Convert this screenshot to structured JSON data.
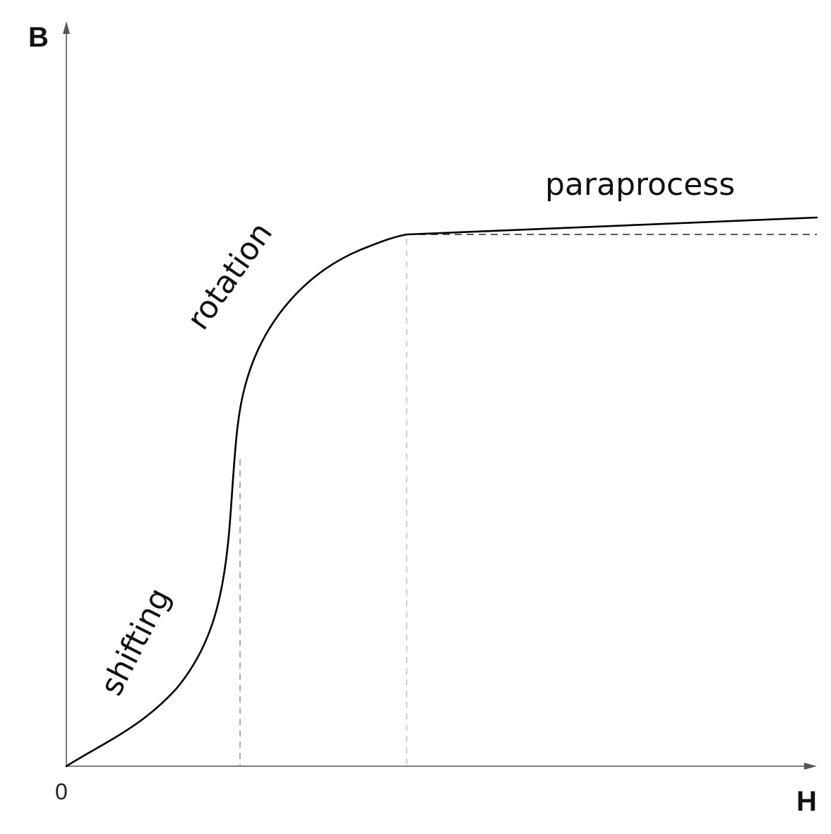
{
  "axes": {
    "y_label": "B",
    "x_label": "H",
    "origin_label": "0"
  },
  "regions": {
    "shifting": "shifting",
    "rotation": "rotation",
    "paraprocess": "paraprocess"
  },
  "colors": {
    "curve": "#000000",
    "axis": "#555555",
    "guide": "#8a8a8a"
  }
}
